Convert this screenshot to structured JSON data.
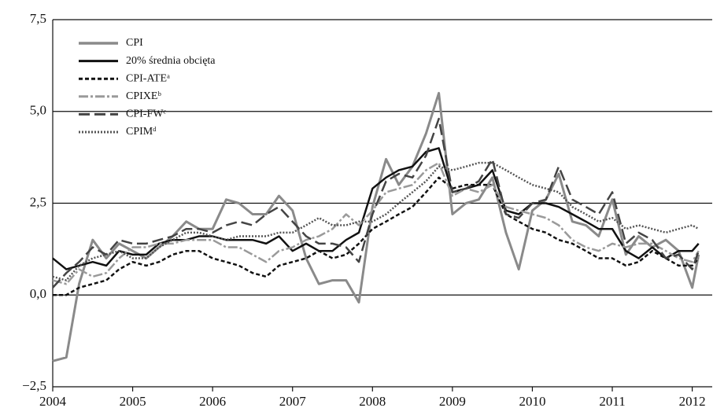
{
  "chart_data": {
    "type": "line",
    "x": [
      2004,
      2004.17,
      2004.33,
      2004.5,
      2004.67,
      2004.83,
      2005,
      2005.17,
      2005.33,
      2005.5,
      2005.67,
      2005.83,
      2006,
      2006.17,
      2006.33,
      2006.5,
      2006.67,
      2006.83,
      2007,
      2007.17,
      2007.33,
      2007.5,
      2007.67,
      2007.83,
      2008,
      2008.17,
      2008.33,
      2008.5,
      2008.67,
      2008.83,
      2009,
      2009.17,
      2009.33,
      2009.5,
      2009.67,
      2009.83,
      2010,
      2010.17,
      2010.33,
      2010.5,
      2010.67,
      2010.83,
      2011,
      2011.17,
      2011.33,
      2011.5,
      2011.67,
      2011.83,
      2012,
      2012.08
    ],
    "series": [
      {
        "name": "CPI",
        "color": "#8a8a8a",
        "width": 3,
        "dash": "none",
        "values": [
          -1.8,
          -1.7,
          0.3,
          1.5,
          1.0,
          1.4,
          1.2,
          1.0,
          1.3,
          1.6,
          2.0,
          1.8,
          1.8,
          2.6,
          2.5,
          2.2,
          2.2,
          2.7,
          2.3,
          1.0,
          0.3,
          0.4,
          0.4,
          -0.2,
          2.4,
          3.7,
          3.0,
          3.5,
          4.4,
          5.5,
          2.2,
          2.5,
          2.6,
          3.2,
          1.7,
          0.7,
          2.3,
          2.6,
          3.3,
          2.0,
          1.9,
          1.6,
          2.6,
          1.1,
          1.6,
          1.3,
          1.5,
          1.2,
          0.2,
          1.1
        ]
      },
      {
        "name": "20% średnia obcięta",
        "color": "#111111",
        "width": 2.5,
        "dash": "none",
        "values": [
          1.0,
          0.7,
          0.8,
          0.9,
          0.8,
          1.2,
          1.1,
          1.1,
          1.4,
          1.5,
          1.5,
          1.6,
          1.6,
          1.5,
          1.5,
          1.5,
          1.4,
          1.6,
          1.2,
          1.4,
          1.2,
          1.2,
          1.5,
          1.7,
          2.9,
          3.2,
          3.4,
          3.5,
          3.9,
          4.0,
          2.8,
          2.9,
          3.0,
          3.4,
          2.3,
          2.2,
          2.5,
          2.5,
          2.4,
          2.2,
          2.0,
          1.8,
          1.8,
          1.2,
          1.0,
          1.3,
          1.0,
          1.2,
          1.2,
          1.4
        ]
      },
      {
        "name": "CPI-ATEᵃ",
        "color": "#111111",
        "width": 2.5,
        "dash": "5,3",
        "values": [
          0.0,
          0.0,
          0.2,
          0.3,
          0.4,
          0.7,
          0.9,
          0.8,
          0.9,
          1.1,
          1.2,
          1.2,
          1.0,
          0.9,
          0.8,
          0.6,
          0.5,
          0.8,
          0.9,
          1.0,
          1.2,
          1.0,
          1.1,
          1.4,
          1.8,
          2.0,
          2.2,
          2.4,
          2.8,
          3.2,
          2.9,
          3.0,
          3.0,
          3.0,
          2.2,
          2.0,
          1.8,
          1.7,
          1.5,
          1.4,
          1.2,
          1.0,
          1.0,
          0.8,
          0.9,
          1.2,
          1.0,
          0.8,
          0.8,
          1.0
        ]
      },
      {
        "name": "CPIXEᵇ",
        "color": "#9a9a9a",
        "width": 2.5,
        "dash": "12,3,3,3",
        "values": [
          0.4,
          0.3,
          0.7,
          0.5,
          0.6,
          1.0,
          1.3,
          1.3,
          1.4,
          1.4,
          1.5,
          1.5,
          1.5,
          1.3,
          1.3,
          1.1,
          0.9,
          1.2,
          1.3,
          1.5,
          1.6,
          1.8,
          2.2,
          1.9,
          2.3,
          2.8,
          2.9,
          3.0,
          3.4,
          3.6,
          2.7,
          2.9,
          2.8,
          3.0,
          2.4,
          2.3,
          2.2,
          2.1,
          1.9,
          1.5,
          1.3,
          1.2,
          1.4,
          1.3,
          1.4,
          1.4,
          1.2,
          1.0,
          0.9,
          1.2
        ]
      },
      {
        "name": "CPI-FWᶜ",
        "color": "#444444",
        "width": 2.5,
        "dash": "14,6",
        "values": [
          0.2,
          0.6,
          0.9,
          1.3,
          1.1,
          1.5,
          1.4,
          1.4,
          1.5,
          1.6,
          1.8,
          1.8,
          1.7,
          1.9,
          2.0,
          1.9,
          2.2,
          2.4,
          2.0,
          1.6,
          1.4,
          1.4,
          1.3,
          0.9,
          2.2,
          3.1,
          3.3,
          3.2,
          3.8,
          4.8,
          2.8,
          2.9,
          3.1,
          3.7,
          2.2,
          2.1,
          2.5,
          2.6,
          3.5,
          2.6,
          2.4,
          2.2,
          2.8,
          1.4,
          1.7,
          1.5,
          1.0,
          1.1,
          0.7,
          1.2
        ]
      },
      {
        "name": "CPIMᵈ",
        "color": "#555555",
        "width": 2.5,
        "dash": "2,2",
        "values": [
          0.5,
          0.4,
          0.8,
          1.0,
          1.1,
          1.2,
          1.0,
          1.0,
          1.3,
          1.5,
          1.7,
          1.7,
          1.6,
          1.5,
          1.6,
          1.6,
          1.6,
          1.7,
          1.7,
          1.9,
          2.1,
          1.9,
          1.9,
          2.0,
          2.0,
          2.2,
          2.5,
          2.8,
          3.1,
          3.5,
          3.4,
          3.5,
          3.6,
          3.6,
          3.4,
          3.2,
          3.0,
          2.9,
          2.8,
          2.4,
          2.2,
          2.0,
          2.1,
          1.8,
          1.9,
          1.8,
          1.7,
          1.8,
          1.9,
          1.8
        ]
      }
    ],
    "xlim": [
      2004,
      2012.25
    ],
    "xticks": [
      2004,
      2005,
      2006,
      2007,
      2008,
      2009,
      2010,
      2011,
      2012
    ],
    "ylim": [
      -2.5,
      7.5
    ],
    "yticks": [
      {
        "value": -2.5,
        "label": "−2,5"
      },
      {
        "value": 0,
        "label": "0,0"
      },
      {
        "value": 2.5,
        "label": "2,5"
      },
      {
        "value": 5,
        "label": "5,0"
      },
      {
        "value": 7.5,
        "label": "7,5"
      }
    ],
    "grid": true,
    "legend": "top-left"
  }
}
